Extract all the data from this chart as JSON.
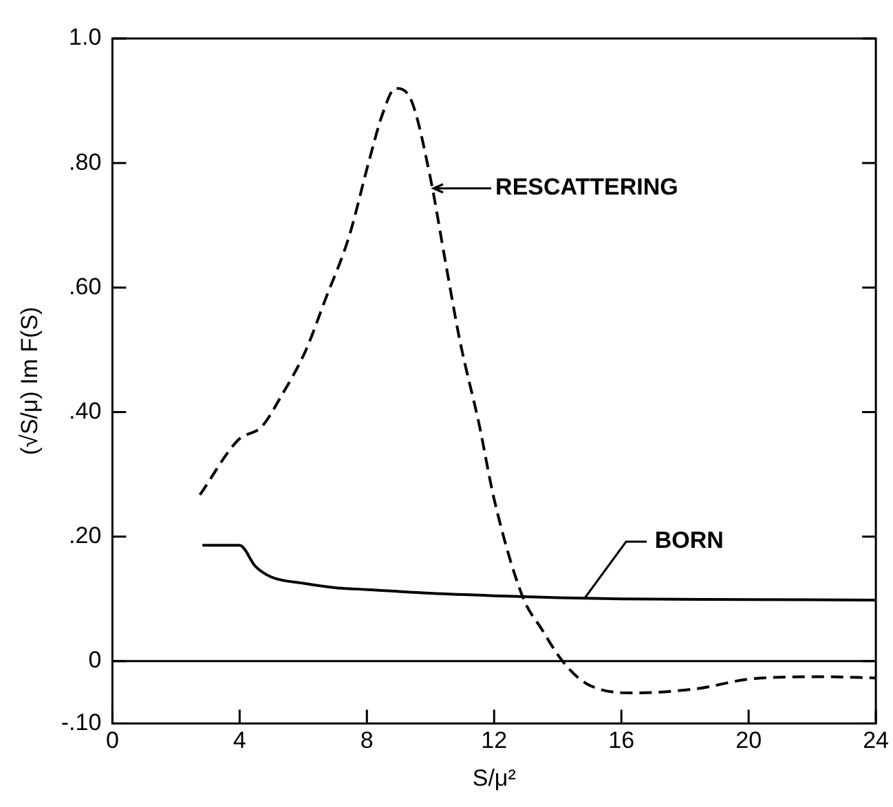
{
  "chart_data": {
    "type": "line",
    "xlabel": "S/μ²",
    "ylabel": "(√S/μ) Im F(S)",
    "xlim": [
      0,
      24
    ],
    "xticks": [
      0,
      4,
      8,
      12,
      16,
      20,
      24
    ],
    "ylim": [
      -0.1,
      1.0
    ],
    "yticks": [
      {
        "value": -0.1,
        "label": "-.10"
      },
      {
        "value": 0,
        "label": "0"
      },
      {
        "value": 0.2,
        "label": ".20"
      },
      {
        "value": 0.4,
        "label": ".40"
      },
      {
        "value": 0.6,
        "label": ".60"
      },
      {
        "value": 0.8,
        "label": ".80"
      },
      {
        "value": 1.0,
        "label": "1.0"
      }
    ],
    "grid": false,
    "legend": false,
    "marker": "none",
    "series": [
      {
        "color": "#000000",
        "line_style": "dashed",
        "x": [
          2.75,
          3.95,
          4.7,
          5.3,
          6.07,
          6.68,
          7.44,
          8.05,
          8.5,
          8.9,
          9.4,
          10.0,
          10.47,
          10.93,
          11.53,
          12.0,
          12.9,
          13.5,
          14.15,
          14.9,
          16.35,
          18.4,
          20,
          22.3,
          24
        ],
        "values": [
          0.267,
          0.355,
          0.377,
          0.425,
          0.498,
          0.579,
          0.682,
          0.8,
          0.88,
          0.92,
          0.9,
          0.775,
          0.641,
          0.513,
          0.38,
          0.26,
          0.103,
          0.051,
          0,
          -0.036,
          -0.051,
          -0.044,
          -0.029,
          -0.025,
          -0.027
        ]
      },
      {
        "color": "#000000",
        "line_style": "solid",
        "x": [
          2.83,
          4,
          4.5,
          5,
          6,
          7,
          8,
          10,
          12,
          14,
          16,
          20,
          24
        ],
        "values": [
          0.186,
          0.186,
          0.152,
          0.135,
          0.125,
          0.118,
          0.115,
          0.109,
          0.105,
          0.102,
          0.1,
          0.099,
          0.098
        ]
      }
    ],
    "ref_lines": [
      {
        "axis": "y",
        "value": 0
      }
    ],
    "annotations": [
      {
        "text": "RESCATTERING",
        "x": 10.05,
        "y": 0.76
      },
      {
        "text": "BORN",
        "x": 14.8,
        "y": 0.1
      }
    ]
  }
}
